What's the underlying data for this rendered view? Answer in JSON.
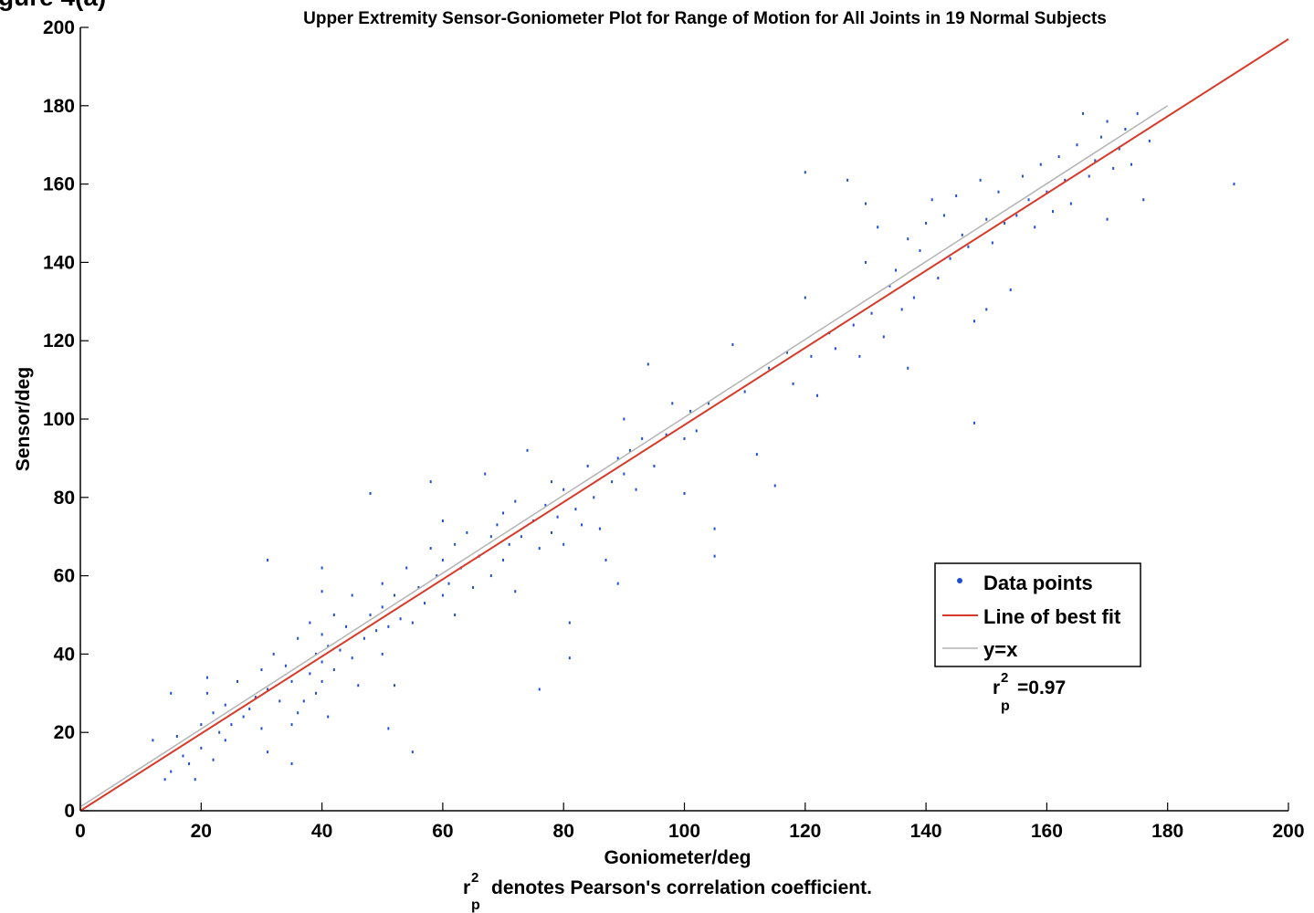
{
  "chart_data": {
    "type": "scatter",
    "corner_label": "gure 4(a)",
    "title": "Upper Extremity Sensor-Goniometer Plot for Range of Motion for All Joints in 19 Normal Subjects",
    "xlabel": "Goniometer/deg",
    "ylabel": "Sensor/deg",
    "xlim": [
      0,
      200
    ],
    "ylim": [
      0,
      200
    ],
    "xticks": [
      "0",
      "20",
      "40",
      "60",
      "80",
      "100",
      "120",
      "140",
      "160",
      "180",
      "200"
    ],
    "yticks": [
      "0",
      "20",
      "40",
      "60",
      "80",
      "100",
      "120",
      "140",
      "160",
      "180",
      "200"
    ],
    "grid": false,
    "legend_position": "lower-right",
    "legend": {
      "data_points": "Data points",
      "best_fit": "Line of best fit",
      "identity": "y=x"
    },
    "annotation": {
      "r_letter": "r",
      "superscript": "2",
      "subscript": "p",
      "value": "=0.97"
    },
    "footnote": {
      "r_letter": "r",
      "superscript": "2",
      "subscript": "p",
      "text": "denotes Pearson's correlation coefficient."
    },
    "series": [
      {
        "name": "Data points",
        "kind": "scatter",
        "color": "#1f4fd0",
        "points": [
          [
            12,
            18
          ],
          [
            14,
            8
          ],
          [
            15,
            10
          ],
          [
            15,
            30
          ],
          [
            16,
            19
          ],
          [
            17,
            14
          ],
          [
            18,
            12
          ],
          [
            19,
            8
          ],
          [
            20,
            16
          ],
          [
            20,
            22
          ],
          [
            21,
            30
          ],
          [
            21,
            34
          ],
          [
            22,
            25
          ],
          [
            22,
            13
          ],
          [
            23,
            20
          ],
          [
            24,
            18
          ],
          [
            24,
            27
          ],
          [
            25,
            22
          ],
          [
            26,
            33
          ],
          [
            27,
            24
          ],
          [
            28,
            26
          ],
          [
            29,
            29
          ],
          [
            30,
            21
          ],
          [
            30,
            36
          ],
          [
            31,
            31
          ],
          [
            31,
            15
          ],
          [
            31,
            64
          ],
          [
            32,
            40
          ],
          [
            33,
            28
          ],
          [
            34,
            37
          ],
          [
            35,
            22
          ],
          [
            35,
            12
          ],
          [
            35,
            33
          ],
          [
            36,
            25
          ],
          [
            36,
            44
          ],
          [
            37,
            28
          ],
          [
            38,
            35
          ],
          [
            38,
            48
          ],
          [
            39,
            40
          ],
          [
            39,
            30
          ],
          [
            40,
            33
          ],
          [
            40,
            38
          ],
          [
            40,
            45
          ],
          [
            40,
            56
          ],
          [
            40,
            62
          ],
          [
            41,
            24
          ],
          [
            41,
            42
          ],
          [
            42,
            36
          ],
          [
            42,
            50
          ],
          [
            43,
            41
          ],
          [
            44,
            47
          ],
          [
            45,
            39
          ],
          [
            45,
            55
          ],
          [
            46,
            32
          ],
          [
            47,
            44
          ],
          [
            48,
            50
          ],
          [
            48,
            81
          ],
          [
            49,
            46
          ],
          [
            50,
            52
          ],
          [
            50,
            40
          ],
          [
            50,
            58
          ],
          [
            51,
            21
          ],
          [
            51,
            47
          ],
          [
            52,
            55
          ],
          [
            52,
            32
          ],
          [
            53,
            49
          ],
          [
            54,
            62
          ],
          [
            55,
            48
          ],
          [
            55,
            15
          ],
          [
            56,
            57
          ],
          [
            57,
            53
          ],
          [
            58,
            67
          ],
          [
            58,
            84
          ],
          [
            59,
            60
          ],
          [
            60,
            55
          ],
          [
            60,
            64
          ],
          [
            60,
            74
          ],
          [
            61,
            58
          ],
          [
            62,
            68
          ],
          [
            62,
            50
          ],
          [
            63,
            62
          ],
          [
            64,
            71
          ],
          [
            65,
            57
          ],
          [
            66,
            65
          ],
          [
            67,
            86
          ],
          [
            68,
            70
          ],
          [
            68,
            60
          ],
          [
            69,
            73
          ],
          [
            70,
            64
          ],
          [
            70,
            76
          ],
          [
            71,
            68
          ],
          [
            72,
            79
          ],
          [
            72,
            56
          ],
          [
            73,
            70
          ],
          [
            74,
            92
          ],
          [
            75,
            74
          ],
          [
            76,
            67
          ],
          [
            76,
            31
          ],
          [
            77,
            78
          ],
          [
            78,
            71
          ],
          [
            78,
            84
          ],
          [
            79,
            75
          ],
          [
            80,
            68
          ],
          [
            80,
            82
          ],
          [
            81,
            48
          ],
          [
            81,
            39
          ],
          [
            82,
            77
          ],
          [
            83,
            73
          ],
          [
            84,
            88
          ],
          [
            85,
            80
          ],
          [
            86,
            72
          ],
          [
            87,
            64
          ],
          [
            88,
            84
          ],
          [
            89,
            90
          ],
          [
            89,
            58
          ],
          [
            90,
            86
          ],
          [
            90,
            100
          ],
          [
            91,
            92
          ],
          [
            92,
            82
          ],
          [
            93,
            95
          ],
          [
            94,
            114
          ],
          [
            95,
            88
          ],
          [
            97,
            96
          ],
          [
            98,
            104
          ],
          [
            100,
            81
          ],
          [
            100,
            95
          ],
          [
            101,
            102
          ],
          [
            102,
            97
          ],
          [
            104,
            104
          ],
          [
            105,
            72
          ],
          [
            105,
            65
          ],
          [
            108,
            119
          ],
          [
            110,
            107
          ],
          [
            112,
            91
          ],
          [
            114,
            113
          ],
          [
            115,
            83
          ],
          [
            117,
            117
          ],
          [
            118,
            109
          ],
          [
            120,
            163
          ],
          [
            120,
            131
          ],
          [
            121,
            116
          ],
          [
            122,
            106
          ],
          [
            124,
            122
          ],
          [
            125,
            118
          ],
          [
            127,
            161
          ],
          [
            128,
            124
          ],
          [
            129,
            116
          ],
          [
            130,
            155
          ],
          [
            130,
            140
          ],
          [
            131,
            127
          ],
          [
            132,
            149
          ],
          [
            133,
            121
          ],
          [
            134,
            134
          ],
          [
            135,
            138
          ],
          [
            136,
            128
          ],
          [
            137,
            146
          ],
          [
            137,
            113
          ],
          [
            138,
            131
          ],
          [
            139,
            143
          ],
          [
            140,
            150
          ],
          [
            141,
            156
          ],
          [
            142,
            136
          ],
          [
            143,
            152
          ],
          [
            144,
            141
          ],
          [
            145,
            157
          ],
          [
            146,
            147
          ],
          [
            147,
            144
          ],
          [
            148,
            99
          ],
          [
            148,
            125
          ],
          [
            149,
            161
          ],
          [
            150,
            151
          ],
          [
            150,
            128
          ],
          [
            151,
            145
          ],
          [
            152,
            158
          ],
          [
            153,
            150
          ],
          [
            154,
            133
          ],
          [
            155,
            152
          ],
          [
            156,
            162
          ],
          [
            157,
            156
          ],
          [
            158,
            149
          ],
          [
            159,
            165
          ],
          [
            160,
            158
          ],
          [
            161,
            153
          ],
          [
            162,
            167
          ],
          [
            163,
            161
          ],
          [
            164,
            155
          ],
          [
            165,
            170
          ],
          [
            166,
            178
          ],
          [
            167,
            162
          ],
          [
            168,
            166
          ],
          [
            169,
            172
          ],
          [
            170,
            151
          ],
          [
            170,
            176
          ],
          [
            171,
            164
          ],
          [
            172,
            169
          ],
          [
            173,
            174
          ],
          [
            174,
            165
          ],
          [
            175,
            178
          ],
          [
            176,
            156
          ],
          [
            177,
            171
          ],
          [
            191,
            160
          ]
        ]
      },
      {
        "name": "Line of best fit",
        "kind": "line",
        "color": "#d83a2a",
        "points": [
          [
            0,
            0
          ],
          [
            200,
            197
          ]
        ]
      },
      {
        "name": "y=x",
        "kind": "line",
        "color": "#b4b4b4",
        "points": [
          [
            0,
            1
          ],
          [
            180,
            180
          ]
        ]
      }
    ]
  }
}
